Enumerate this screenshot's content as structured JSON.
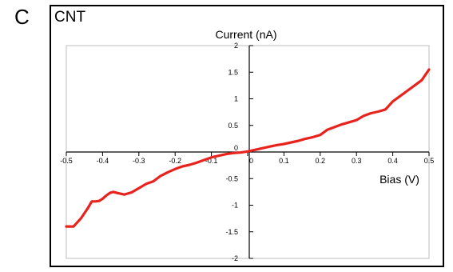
{
  "panel_label": "C",
  "figure_title": "CNT",
  "chart_data": {
    "type": "line",
    "title": "",
    "xlabel": "Bias (V)",
    "ylabel": "Current (nA)",
    "xlim": [
      -0.5,
      0.5
    ],
    "ylim": [
      -2,
      2
    ],
    "x_ticks": [
      -0.5,
      -0.4,
      -0.3,
      -0.2,
      -0.1,
      0,
      0.1,
      0.2,
      0.3,
      0.4,
      0.5
    ],
    "x_tick_labels": [
      "-0.5",
      "-0.4",
      "-0.3",
      "-0.2",
      "-0.1",
      "0",
      "0.1",
      "0.2",
      "0.3",
      "0.4",
      "0.5"
    ],
    "y_ticks": [
      -2,
      -1.5,
      -1,
      -0.5,
      0,
      0.5,
      1,
      1.5,
      2
    ],
    "y_tick_labels": [
      "-2",
      "-1.5",
      "-1",
      "-0.5",
      "0",
      "0.5",
      "1",
      "1.5",
      "2"
    ],
    "grid": false,
    "series": [
      {
        "color": "#e8231e",
        "x": [
          -0.5,
          -0.48,
          -0.46,
          -0.44,
          -0.43,
          -0.42,
          -0.41,
          -0.4,
          -0.39,
          -0.38,
          -0.37,
          -0.36,
          -0.34,
          -0.32,
          -0.3,
          -0.28,
          -0.26,
          -0.24,
          -0.22,
          -0.2,
          -0.18,
          -0.16,
          -0.14,
          -0.12,
          -0.1,
          -0.08,
          -0.06,
          -0.04,
          -0.02,
          0,
          0.02,
          0.04,
          0.06,
          0.08,
          0.1,
          0.12,
          0.14,
          0.16,
          0.18,
          0.2,
          0.22,
          0.24,
          0.26,
          0.28,
          0.3,
          0.32,
          0.34,
          0.36,
          0.38,
          0.4,
          0.42,
          0.44,
          0.46,
          0.48,
          0.5
        ],
        "y": [
          -1.4,
          -1.4,
          -1.25,
          -1.05,
          -0.93,
          -0.93,
          -0.92,
          -0.88,
          -0.82,
          -0.77,
          -0.75,
          -0.77,
          -0.8,
          -0.76,
          -0.68,
          -0.6,
          -0.55,
          -0.45,
          -0.38,
          -0.32,
          -0.27,
          -0.24,
          -0.2,
          -0.15,
          -0.1,
          -0.07,
          -0.04,
          -0.02,
          -0.01,
          0.01,
          0.04,
          0.07,
          0.1,
          0.13,
          0.15,
          0.18,
          0.21,
          0.25,
          0.28,
          0.32,
          0.42,
          0.47,
          0.52,
          0.56,
          0.6,
          0.68,
          0.73,
          0.76,
          0.8,
          0.95,
          1.05,
          1.15,
          1.25,
          1.35,
          1.55
        ]
      }
    ]
  }
}
